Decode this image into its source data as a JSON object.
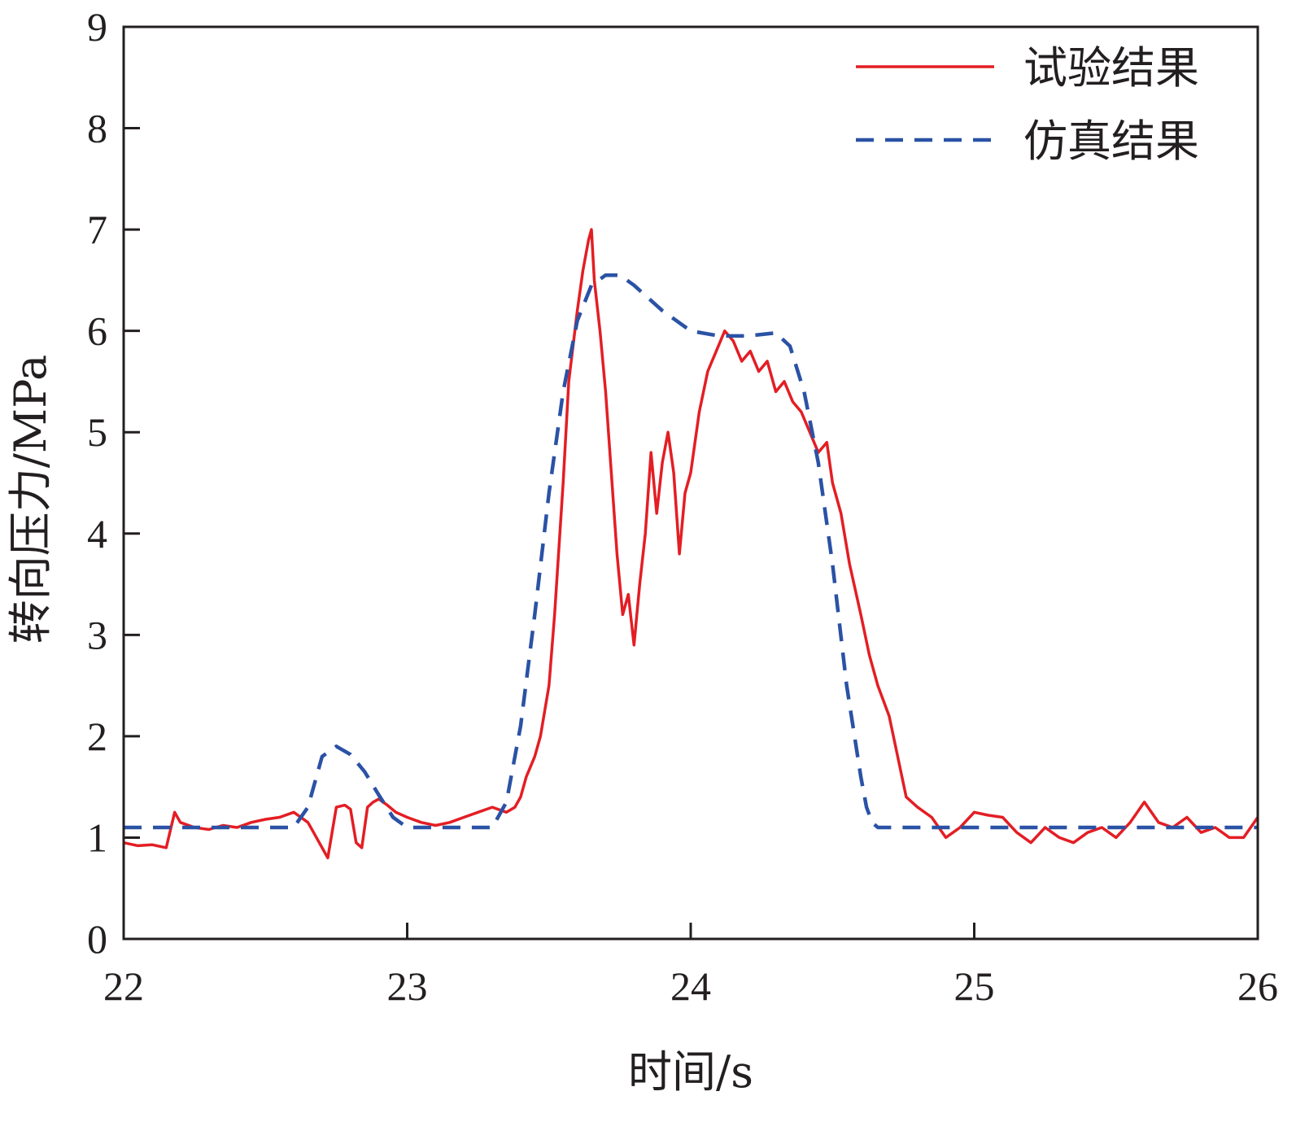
{
  "chart_data": {
    "type": "line",
    "title": "",
    "xlabel": "时间/s",
    "ylabel": "转向压力/MPa",
    "xlim": [
      22,
      26
    ],
    "ylim": [
      0,
      9
    ],
    "xticks": [
      22,
      23,
      24,
      25,
      26
    ],
    "yticks": [
      0,
      1,
      2,
      3,
      4,
      5,
      6,
      7,
      8,
      9
    ],
    "grid": false,
    "legend_position": "top-right",
    "series": [
      {
        "name": "试验结果",
        "color": "#e31e24",
        "style": "solid",
        "x": [
          22.0,
          22.05,
          22.1,
          22.15,
          22.18,
          22.2,
          22.25,
          22.3,
          22.35,
          22.4,
          22.45,
          22.5,
          22.55,
          22.6,
          22.65,
          22.67,
          22.7,
          22.72,
          22.75,
          22.78,
          22.8,
          22.82,
          22.84,
          22.86,
          22.88,
          22.9,
          22.93,
          22.96,
          23.0,
          23.05,
          23.1,
          23.15,
          23.2,
          23.25,
          23.3,
          23.35,
          23.38,
          23.4,
          23.42,
          23.45,
          23.47,
          23.5,
          23.52,
          23.55,
          23.57,
          23.6,
          23.62,
          23.64,
          23.65,
          23.66,
          23.68,
          23.7,
          23.72,
          23.74,
          23.76,
          23.78,
          23.8,
          23.82,
          23.84,
          23.86,
          23.88,
          23.9,
          23.92,
          23.94,
          23.96,
          23.98,
          24.0,
          24.03,
          24.06,
          24.09,
          24.12,
          24.15,
          24.18,
          24.21,
          24.24,
          24.27,
          24.3,
          24.33,
          24.36,
          24.39,
          24.42,
          24.45,
          24.48,
          24.5,
          24.53,
          24.56,
          24.6,
          24.63,
          24.66,
          24.7,
          24.73,
          24.76,
          24.8,
          24.85,
          24.9,
          24.95,
          25.0,
          25.05,
          25.1,
          25.15,
          25.2,
          25.25,
          25.3,
          25.35,
          25.4,
          25.45,
          25.5,
          25.55,
          25.6,
          25.65,
          25.7,
          25.75,
          25.8,
          25.85,
          25.9,
          25.95,
          26.0
        ],
        "y": [
          0.95,
          0.92,
          0.93,
          0.9,
          1.25,
          1.15,
          1.1,
          1.08,
          1.12,
          1.1,
          1.15,
          1.18,
          1.2,
          1.25,
          1.15,
          1.05,
          0.9,
          0.8,
          1.3,
          1.32,
          1.28,
          0.95,
          0.9,
          1.3,
          1.35,
          1.38,
          1.32,
          1.25,
          1.2,
          1.15,
          1.12,
          1.15,
          1.2,
          1.25,
          1.3,
          1.25,
          1.3,
          1.4,
          1.6,
          1.8,
          2.0,
          2.5,
          3.2,
          4.5,
          5.5,
          6.2,
          6.6,
          6.9,
          7.0,
          6.5,
          6.0,
          5.4,
          4.6,
          3.8,
          3.2,
          3.4,
          2.9,
          3.5,
          4.0,
          4.8,
          4.2,
          4.7,
          5.0,
          4.6,
          3.8,
          4.4,
          4.6,
          5.2,
          5.6,
          5.8,
          6.0,
          5.9,
          5.7,
          5.8,
          5.6,
          5.7,
          5.4,
          5.5,
          5.3,
          5.2,
          5.0,
          4.8,
          4.9,
          4.5,
          4.2,
          3.7,
          3.2,
          2.8,
          2.5,
          2.2,
          1.8,
          1.4,
          1.3,
          1.2,
          1.0,
          1.1,
          1.25,
          1.22,
          1.2,
          1.05,
          0.95,
          1.1,
          1.0,
          0.95,
          1.05,
          1.1,
          1.0,
          1.15,
          1.35,
          1.15,
          1.1,
          1.2,
          1.05,
          1.1,
          1.0,
          1.0,
          1.2
        ]
      },
      {
        "name": "仿真结果",
        "color": "#2a52a5",
        "style": "dashed",
        "x": [
          22.0,
          22.6,
          22.65,
          22.7,
          22.75,
          22.8,
          22.85,
          22.9,
          22.95,
          23.0,
          23.1,
          23.2,
          23.3,
          23.35,
          23.4,
          23.45,
          23.5,
          23.55,
          23.6,
          23.65,
          23.7,
          23.75,
          23.8,
          23.9,
          24.0,
          24.1,
          24.2,
          24.3,
          24.35,
          24.4,
          24.45,
          24.5,
          24.55,
          24.6,
          24.62,
          24.64,
          24.66,
          24.7,
          26.0
        ],
        "y": [
          1.1,
          1.1,
          1.3,
          1.8,
          1.9,
          1.82,
          1.65,
          1.42,
          1.2,
          1.1,
          1.1,
          1.1,
          1.1,
          1.35,
          2.1,
          3.2,
          4.4,
          5.4,
          6.1,
          6.45,
          6.55,
          6.55,
          6.45,
          6.2,
          6.0,
          5.95,
          5.95,
          5.98,
          5.85,
          5.4,
          4.7,
          3.7,
          2.5,
          1.6,
          1.3,
          1.15,
          1.1,
          1.1,
          1.1
        ]
      }
    ]
  }
}
